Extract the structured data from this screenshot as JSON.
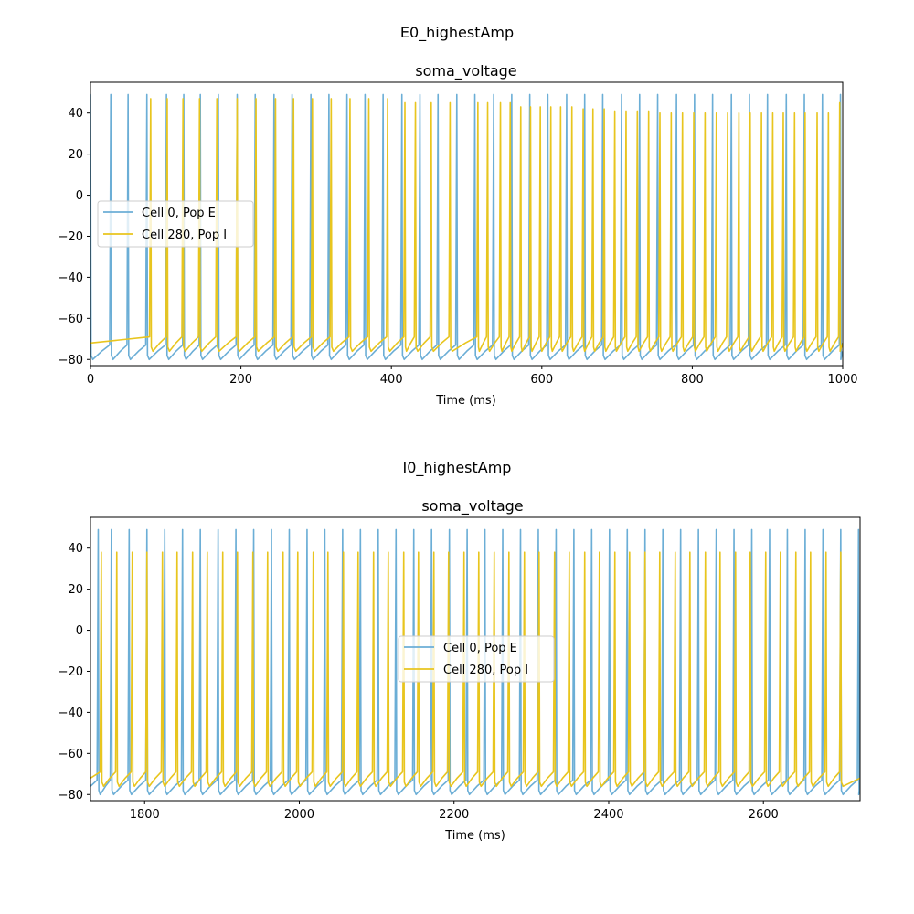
{
  "chart_data": [
    {
      "type": "line",
      "suptitle": "E0_highestAmp",
      "title": "soma_voltage",
      "xlabel": "Time (ms)",
      "ylabel": "",
      "xlim": [
        0,
        1000
      ],
      "ylim": [
        -83,
        55
      ],
      "xticks": [
        0,
        200,
        400,
        600,
        800,
        1000
      ],
      "yticks": [
        -80,
        -60,
        -40,
        -20,
        0,
        20,
        40
      ],
      "legend_position": "center-left",
      "series": [
        {
          "name": "Cell 0, Pop E",
          "color": "#6baed6",
          "rest": -76,
          "peak": 49,
          "spike_times": [
            0,
            27,
            50,
            75,
            101,
            124,
            146,
            170,
            195,
            219,
            244,
            268,
            293,
            317,
            341,
            365,
            389,
            414,
            438,
            462,
            487,
            511,
            536,
            560,
            584,
            608,
            633,
            657,
            681,
            706,
            730,
            754,
            779,
            803,
            827,
            852,
            876,
            900,
            925,
            949,
            973,
            997
          ]
        },
        {
          "name": "Cell 280, Pop I",
          "color": "#e8c51e",
          "rest": -72,
          "spike_times": [
            80,
            102,
            123,
            145,
            168,
            195,
            220,
            246,
            270,
            295,
            320,
            345,
            370,
            395,
            418,
            432,
            453,
            478,
            515,
            528,
            545,
            558,
            572,
            585,
            598,
            612,
            625,
            640,
            655,
            668,
            683,
            697,
            712,
            727,
            742,
            757,
            772,
            787,
            802,
            817,
            832,
            847,
            862,
            877,
            892,
            907,
            921,
            936,
            950,
            966,
            981,
            996
          ],
          "spike_peaks": [
            47,
            47,
            47,
            47,
            47,
            47,
            47,
            47,
            47,
            47,
            47,
            47,
            47,
            47,
            45,
            45,
            45,
            45,
            45,
            45,
            45,
            45,
            43,
            43,
            43,
            43,
            43,
            43,
            42,
            42,
            42,
            41,
            41,
            41,
            41,
            40,
            40,
            40,
            40,
            40,
            40,
            40,
            40,
            40,
            40,
            40,
            40,
            40,
            40,
            40,
            40,
            45
          ]
        }
      ]
    },
    {
      "type": "line",
      "suptitle": "I0_highestAmp",
      "title": "soma_voltage",
      "xlabel": "Time (ms)",
      "ylabel": "",
      "xlim": [
        1730,
        2725
      ],
      "ylim": [
        -83,
        55
      ],
      "xticks": [
        1800,
        2000,
        2200,
        2400,
        2600
      ],
      "yticks": [
        -80,
        -60,
        -40,
        -20,
        0,
        20,
        40
      ],
      "legend_position": "center",
      "series": [
        {
          "name": "Cell 0, Pop E",
          "color": "#6baed6",
          "rest": -76,
          "peak": 49,
          "spike_times": [
            1740,
            1757,
            1780,
            1803,
            1826,
            1849,
            1872,
            1895,
            1918,
            1941,
            1964,
            1987,
            2010,
            2033,
            2056,
            2079,
            2102,
            2125,
            2148,
            2171,
            2194,
            2217,
            2240,
            2263,
            2286,
            2309,
            2332,
            2355,
            2378,
            2401,
            2424,
            2447,
            2470,
            2493,
            2516,
            2539,
            2562,
            2585,
            2608,
            2631,
            2654,
            2677,
            2700,
            2723
          ]
        },
        {
          "name": "Cell 280, Pop I",
          "color": "#e8c51e",
          "rest": -72,
          "peak": 38,
          "spike_times": [
            1744,
            1764,
            1784,
            1803,
            1823,
            1842,
            1862,
            1881,
            1901,
            1920,
            1940,
            1959,
            1979,
            1998,
            2018,
            2037,
            2057,
            2076,
            2096,
            2115,
            2135,
            2154,
            2174,
            2193,
            2213,
            2232,
            2252,
            2271,
            2291,
            2310,
            2330,
            2349,
            2369,
            2388,
            2408,
            2427,
            2447,
            2466,
            2486,
            2505,
            2525,
            2544,
            2564,
            2583,
            2603,
            2622,
            2642,
            2661,
            2681,
            2700
          ]
        }
      ]
    }
  ]
}
